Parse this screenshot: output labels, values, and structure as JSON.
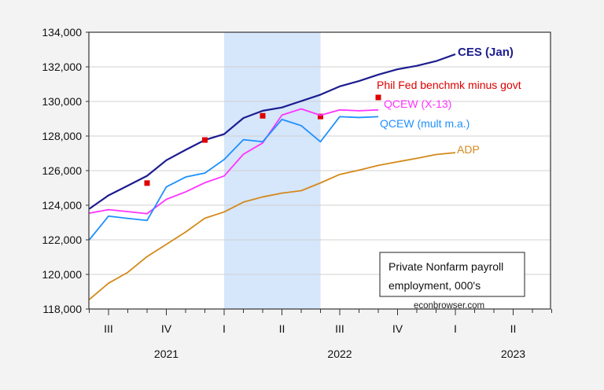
{
  "chart_data": {
    "type": "line",
    "title": "",
    "xlabel": "",
    "ylabel": "",
    "ylim": [
      118000,
      134000
    ],
    "yticks": [
      "118,000",
      "120,000",
      "122,000",
      "124,000",
      "126,000",
      "128,000",
      "130,000",
      "132,000",
      "134,000"
    ],
    "x_months": [
      "2021-07",
      "2021-08",
      "2021-09",
      "2021-10",
      "2021-11",
      "2021-12",
      "2022-01",
      "2022-02",
      "2022-03",
      "2022-04",
      "2022-05",
      "2022-06",
      "2022-07",
      "2022-08",
      "2022-09",
      "2022-10",
      "2022-11",
      "2022-12",
      "2023-01",
      "2023-02"
    ],
    "xlim": [
      "2021-07",
      "2023-06"
    ],
    "quarter_labels": [
      "III",
      "IV",
      "I",
      "II",
      "III",
      "IV",
      "I",
      "II"
    ],
    "year_labels": [
      "2021",
      "2022",
      "2023"
    ],
    "grid": "horizontal",
    "shaded_region": [
      "2022-02",
      "2022-07"
    ],
    "series": [
      {
        "name": "CES (Jan)",
        "color": "#1c1c8f",
        "bold": true,
        "values": [
          123790,
          124570,
          125130,
          125700,
          126600,
          127200,
          127770,
          128110,
          129040,
          129460,
          129650,
          130020,
          130390,
          130870,
          131180,
          131550,
          131860,
          132060,
          132330,
          132730
        ]
      },
      {
        "name": "Phil Fed benchmk minus govt",
        "color": "#dd0000",
        "markers_only": true,
        "points": [
          [
            "2021-10",
            125280
          ],
          [
            "2022-01",
            127770
          ],
          [
            "2022-04",
            129170
          ],
          [
            "2022-07",
            129130
          ],
          [
            "2022-10",
            130230
          ]
        ]
      },
      {
        "name": "QCEW (X-13)",
        "color": "#ff33ff",
        "values": [
          123540,
          123745,
          123630,
          123510,
          124340,
          124770,
          125300,
          125690,
          126950,
          127600,
          129210,
          129570,
          129200,
          129510,
          129460,
          129510
        ]
      },
      {
        "name": "QCEW (mult m.a.)",
        "color": "#1e90ff",
        "values": [
          122000,
          123370,
          123240,
          123120,
          125060,
          125630,
          125860,
          126640,
          127790,
          127670,
          128960,
          128600,
          127670,
          129120,
          129070,
          129120
        ]
      },
      {
        "name": "ADP",
        "color": "#d4891a",
        "values": [
          118550,
          119490,
          120120,
          121030,
          121740,
          122450,
          123250,
          123610,
          124180,
          124480,
          124700,
          124840,
          125290,
          125780,
          126030,
          126300,
          126510,
          126710,
          126930,
          127040
        ]
      }
    ],
    "annotation_box": [
      "Private Nonfarm payroll",
      "employment, 000's"
    ],
    "source": "econbrowser.com",
    "shade_color": "#d6e6fb"
  }
}
